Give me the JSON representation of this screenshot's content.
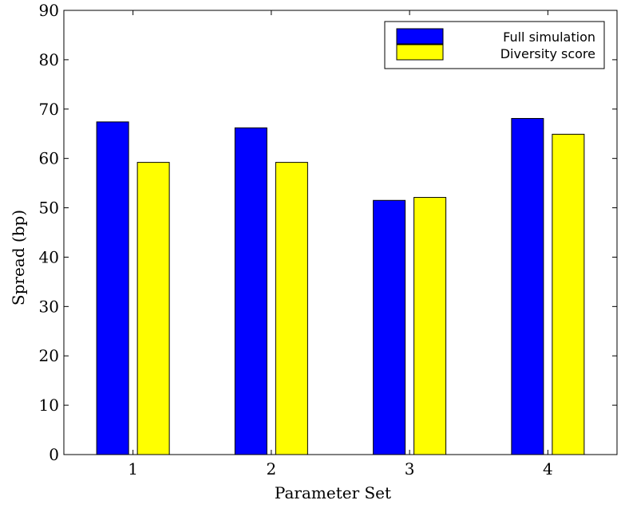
{
  "chart_data": {
    "type": "bar",
    "categories": [
      "1",
      "2",
      "3",
      "4"
    ],
    "series": [
      {
        "name": "Full simulation",
        "color": "#0000ff",
        "values": [
          67.4,
          66.2,
          51.5,
          68.1
        ]
      },
      {
        "name": "Diversity score",
        "color": "#ffff00",
        "values": [
          59.2,
          59.2,
          52.1,
          64.9
        ]
      }
    ],
    "title": "",
    "xlabel": "Parameter Set",
    "ylabel": "Spread (bp)",
    "ylim": [
      0,
      90
    ],
    "yticks": [
      "0",
      "10",
      "20",
      "30",
      "40",
      "50",
      "60",
      "70",
      "80",
      "90"
    ],
    "grid": false,
    "legend_position": "top-right"
  }
}
